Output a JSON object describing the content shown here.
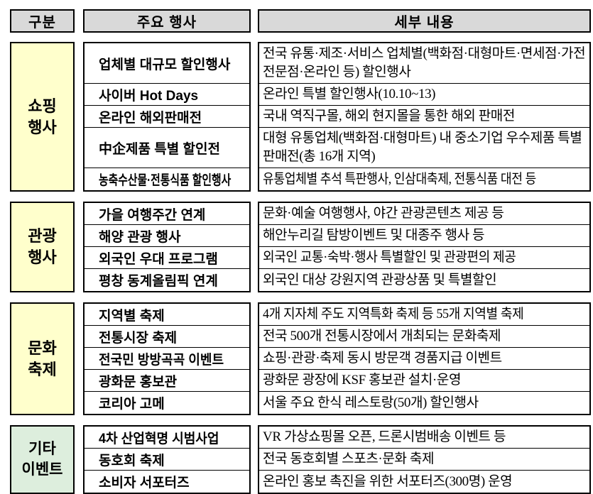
{
  "colors": {
    "header_bg": "#d9d9d9",
    "category_yellow": "#ffffcc",
    "category_green": "#ddeedd",
    "border": "#000000"
  },
  "header": {
    "col_category": "구분",
    "col_event": "주요 행사",
    "col_detail": "세부 내용"
  },
  "sections": [
    {
      "category": "쇼핑\n행사",
      "rows": [
        {
          "event": "업체별 대규모 할인행사",
          "detail": "전국 유통·제조·서비스 업체별(백화점·대형마트·면세점·가전전문점·온라인 등) 할인행사"
        },
        {
          "event": "사이버 Hot Days",
          "detail": "온라인 특별 할인행사(10.10~13)"
        },
        {
          "event": "온라인 해외판매전",
          "detail": "국내 역직구몰, 해외 현지몰을 통한 해외 판매전"
        },
        {
          "event": "中企제품 특별 할인전",
          "detail": "대형 유통업체(백화점·대형마트) 내 중소기업 우수제품 특별 판매전(총 16개 지역)"
        },
        {
          "event": "농축수산물·전통식품 할인행사",
          "detail": "유통업체별 추석 특판행사, 인삼대축제, 전통식품 대전 등"
        }
      ]
    },
    {
      "category": "관광\n행사",
      "rows": [
        {
          "event": "가을 여행주간 연계",
          "detail": "문화·예술 여행행사, 야간 관광콘텐츠 제공 등"
        },
        {
          "event": "해양 관광 행사",
          "detail": "해안누리길 탐방이벤트 및 대종주 행사 등"
        },
        {
          "event": "외국인 우대 프로그램",
          "detail": "외국인 교통·숙박·행사 특별할인 및 관광편의 제공"
        },
        {
          "event": "평창 동계올림픽 연계",
          "detail": "외국인 대상 강원지역 관광상품 및 특별할인"
        }
      ]
    },
    {
      "category": "문화\n축제",
      "rows": [
        {
          "event": "지역별 축제",
          "detail": "4개 지자체 주도 지역특화 축제 등 55개 지역별 축제"
        },
        {
          "event": "전통시장 축제",
          "detail": "전국 500개 전통시장에서 개최되는 문화축제"
        },
        {
          "event": "전국민 방방곡곡 이벤트",
          "detail": "쇼핑·관광·축제 동시 방문객 경품지급 이벤트"
        },
        {
          "event": "광화문 홍보관",
          "detail": "광화문 광장에 KSF 홍보관 설치·운영"
        },
        {
          "event": "코리아 고메",
          "detail": "서울 주요 한식 레스토랑(50개) 할인행사"
        }
      ]
    },
    {
      "category": "기타\n이벤트",
      "rows": [
        {
          "event": "4차 산업혁명 시범사업",
          "detail": "VR 가상쇼핑몰 오픈, 드론시범배송 이벤트 등"
        },
        {
          "event": "동호회 축제",
          "detail": "전국 동호회별 스포츠·문화 축제"
        },
        {
          "event": "소비자 서포터즈",
          "detail": "온라인 홍보 촉진을 위한 서포터즈(300명) 운영"
        }
      ]
    }
  ]
}
